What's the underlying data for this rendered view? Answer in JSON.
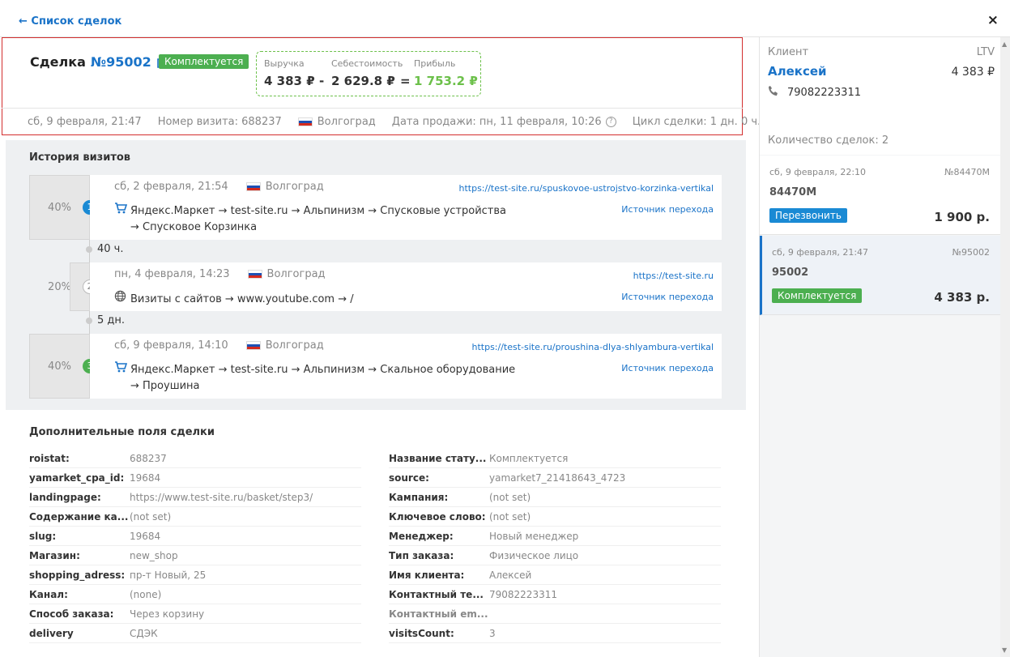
{
  "header": {
    "back_label": "← Список сделок",
    "close_label": "×"
  },
  "deal": {
    "title_prefix": "Сделка",
    "number": "№95002",
    "status": "Комплектуется",
    "revenue_label": "Выручка",
    "cost_label": "Себестоимость",
    "profit_label": "Прибыль",
    "revenue": "4 383 ₽",
    "minus": "-",
    "cost": "2 629.8 ₽",
    "equals": "=",
    "profit": "1 753.2 ₽",
    "meta": {
      "date": "сб, 9 февраля, 21:47",
      "visit_number": "Номер визита: 688237",
      "city": "Волгоград",
      "sale_date": "Дата продажи: пн, 11 февраля, 10:26",
      "cycle": "Цикл сделки: 1 дн. 0 ч."
    }
  },
  "visits": {
    "title": "История визитов",
    "items": [
      {
        "pct": "40%",
        "num": "1",
        "date": "сб, 2 февраля, 21:54",
        "city": "Волгоград",
        "url": "https://test-site.ru/spuskovoe-ustrojstvo-korzinka-vertikal",
        "source_link": "Источник перехода",
        "path_line1": "Яндекс.Маркет → test-site.ru → Альпинизм → Спусковые устройства",
        "path_line2": "→ Спусковое Корзинка",
        "icon": "cart-icon"
      },
      {
        "pct": "20%",
        "num": "2",
        "date": "пн, 4 февраля, 14:23",
        "city": "Волгоград",
        "url": "https://test-site.ru",
        "source_link": "Источник перехода",
        "path_line1": "Визиты с сайтов → www.youtube.com → /",
        "path_line2": "",
        "icon": "globe-icon"
      },
      {
        "pct": "40%",
        "num": "3",
        "date": "сб, 9 февраля, 14:10",
        "city": "Волгоград",
        "url": "https://test-site.ru/proushina-dlya-shlyambura-vertikal",
        "source_link": "Источник перехода",
        "path_line1": "Яндекс.Маркет → test-site.ru → Альпинизм → Скальное оборудование",
        "path_line2": "→ Проушина",
        "icon": "cart-icon"
      }
    ],
    "gaps": [
      "40 ч.",
      "5 дн."
    ]
  },
  "fields": {
    "title": "Дополнительные поля сделки",
    "left": [
      {
        "key": "roistat:",
        "value": "688237"
      },
      {
        "key": "yamarket_cpa_id:",
        "value": "19684"
      },
      {
        "key": "landingpage:",
        "value": "https://www.test-site.ru/basket/step3/"
      },
      {
        "key": "Содержание ка...",
        "value": "(not set)"
      },
      {
        "key": "slug:",
        "value": "19684"
      },
      {
        "key": "Магазин:",
        "value": "new_shop"
      },
      {
        "key": "shopping_adress:",
        "value": "пр-т Новый, 25"
      },
      {
        "key": "Канал:",
        "value": "(none)"
      },
      {
        "key": "Способ заказа:",
        "value": "Через корзину"
      },
      {
        "key": "delivery",
        "value": "СДЭК"
      }
    ],
    "right": [
      {
        "key": "Название стату...",
        "value": "Комплектуется"
      },
      {
        "key": "source:",
        "value": "yamarket7_21418643_4723"
      },
      {
        "key": "Кампания:",
        "value": "(not set)"
      },
      {
        "key": "Ключевое слово:",
        "value": "(not set)"
      },
      {
        "key": "Менеджер:",
        "value": "Новый менеджер"
      },
      {
        "key": "Тип заказа:",
        "value": "Физическое лицо"
      },
      {
        "key": "Имя клиента:",
        "value": "Алексей"
      },
      {
        "key": "Контактный те...",
        "value": "79082223311"
      },
      {
        "key": "Контактный em...",
        "value": ""
      },
      {
        "key": "visitsCount:",
        "value": "3"
      }
    ]
  },
  "client": {
    "label": "Клиент",
    "ltv_label": "LTV",
    "name": "Алексей",
    "ltv": "4 383 ₽",
    "phone": "79082223311",
    "deals_count": "Количество сделок: 2"
  },
  "deal_list": [
    {
      "date": "сб, 9 февраля, 22:10",
      "num": "№84470M",
      "name": "84470M",
      "status": "Перезвонить",
      "status_color": "#1a8ad4",
      "sum": "1 900 р."
    },
    {
      "date": "сб, 9 февраля, 21:47",
      "num": "№95002",
      "name": "95002",
      "status": "Комплектуется",
      "status_color": "#4caf50",
      "sum": "4 383 р."
    }
  ],
  "colors": {
    "accent": "#1a73c8",
    "success": "#4caf50",
    "profit": "#6cc04a",
    "highlight_border": "#d32f2f"
  }
}
